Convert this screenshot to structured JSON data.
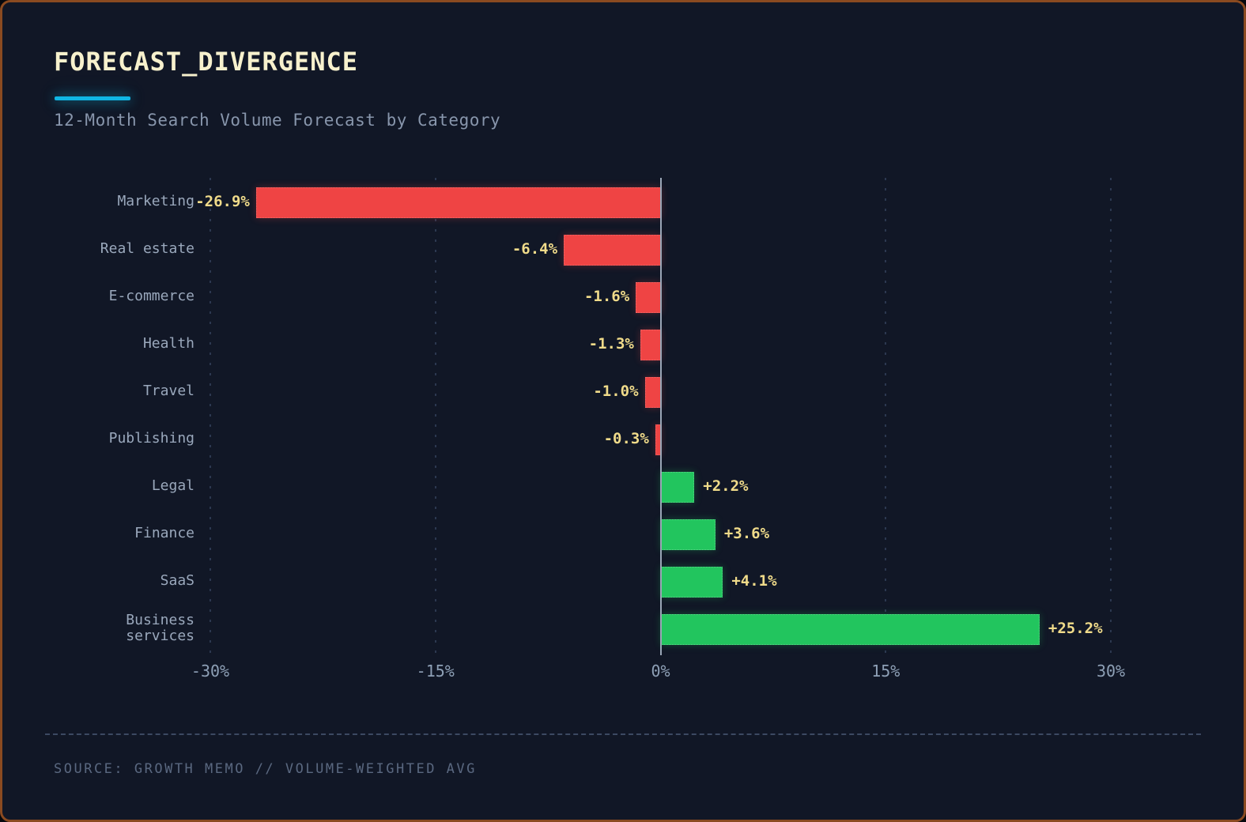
{
  "header": {
    "title": "FORECAST_DIVERGENCE",
    "subtitle": "12-Month Search Volume Forecast by Category"
  },
  "chart_data": {
    "type": "bar",
    "orientation": "horizontal-diverging",
    "title": "FORECAST_DIVERGENCE",
    "subtitle": "12-Month Search Volume Forecast by Category",
    "categories": [
      "Marketing",
      "Real estate",
      "E-commerce",
      "Health",
      "Travel",
      "Publishing",
      "Legal",
      "Finance",
      "SaaS",
      "Business services"
    ],
    "values": [
      -26.9,
      -6.4,
      -1.6,
      -1.3,
      -1.0,
      -0.3,
      2.2,
      3.6,
      4.1,
      25.2
    ],
    "value_labels": [
      "-26.9%",
      "-6.4%",
      "-1.6%",
      "-1.3%",
      "-1.0%",
      "-0.3%",
      "+2.2%",
      "+3.6%",
      "+4.1%",
      "+25.2%"
    ],
    "xlim": [
      -30,
      30
    ],
    "x_tick_values": [
      -30,
      -15,
      0,
      15,
      30
    ],
    "x_tick_labels": [
      "-30%",
      "-15%",
      "0%",
      "15%",
      "30%"
    ],
    "grid": "vertical dotted gridlines at ticks, solid zero axis line",
    "legend": "none"
  },
  "footer": {
    "source": "SOURCE: GROWTH MEMO // VOLUME-WEIGHTED AVG"
  },
  "colors": {
    "background": "#111726",
    "card_border": "#8a4a20",
    "accent_cyan": "#10b6e4",
    "title_text": "#f7f1cd",
    "subtitle_text": "#8896ac",
    "category_label": "#9aa8bc",
    "value_label": "#f0db8a",
    "negative_bar": "#ef4444",
    "positive_bar": "#22c55e",
    "zero_line": "#9aa6b6",
    "axis_label": "#8ea0b6",
    "source_text": "#5a6880"
  }
}
